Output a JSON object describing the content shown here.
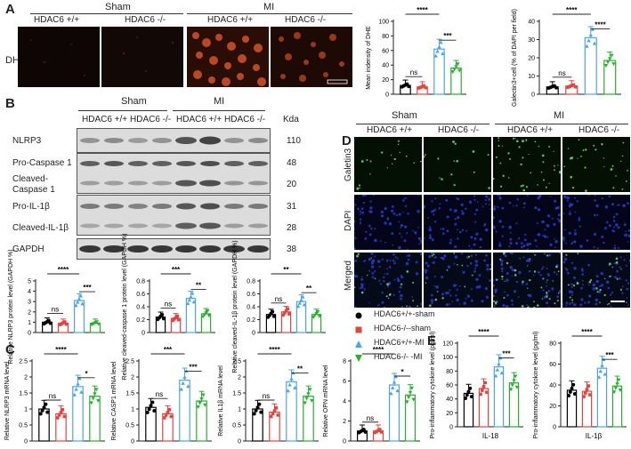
{
  "panels": {
    "A": {
      "letter": "A",
      "groups": [
        "Sham",
        "MI"
      ],
      "genotypes": [
        "HDAC6 +/+",
        "HDAC6 -/-",
        "HDAC6 +/+",
        "HDAC6 -/-"
      ],
      "row_label": "DHE"
    },
    "B": {
      "letter": "B",
      "groups": [
        "Sham",
        "MI"
      ],
      "genotypes": [
        "HDAC6 +/+",
        "HDAC6 -/-",
        "HDAC6 +/+",
        "HDAC6 -/-"
      ],
      "kda_label": "Kda",
      "rows": [
        {
          "label": "NLRP3",
          "kda": "110"
        },
        {
          "label": "Pro-Caspase 1",
          "kda": "48"
        },
        {
          "label": "Cleaved-\nCaspase 1",
          "kda": "20"
        },
        {
          "label": "Pro-IL-1β",
          "kda": "31"
        },
        {
          "label": "Cleaved-IL-1β",
          "kda": "28"
        },
        {
          "label": "GAPDH",
          "kda": "38"
        }
      ]
    },
    "C": {
      "letter": "C"
    },
    "D": {
      "letter": "D",
      "groups": [
        "Sham",
        "MI"
      ],
      "genotypes": [
        "HDAC6 +/+",
        "HDAC6 -/-",
        "HDAC6 +/+",
        "HDAC6 -/-"
      ],
      "rows": [
        "Galetin3",
        "DAPI",
        "Merged"
      ]
    },
    "E": {
      "letter": "E"
    }
  },
  "legend": {
    "items": [
      {
        "label": "HDAC6+/+-sham",
        "color": "#000000",
        "marker": "circle"
      },
      {
        "label": "HDAC6-/--sham",
        "color": "#e8423d",
        "marker": "square"
      },
      {
        "label": "HDAC6+/+-MI",
        "color": "#4aa6e8",
        "marker": "triangle-up"
      },
      {
        "label": "HDAC6-/- -MI",
        "color": "#27b02e",
        "marker": "triangle-down"
      }
    ]
  },
  "colors": {
    "sham_wt": "#000000",
    "sham_ko": "#e8423d",
    "mi_wt": "#4aa6e8",
    "mi_ko": "#27b02e"
  },
  "chart_data": [
    {
      "id": "A-dhe",
      "type": "bar",
      "ylabel": "Mean indensity of DHE",
      "ylim": [
        0,
        100
      ],
      "yticks": [
        0,
        20,
        40,
        60,
        80,
        100
      ],
      "values": [
        12,
        10,
        62,
        36
      ],
      "sig": [
        {
          "a": 0,
          "b": 1,
          "t": "ns"
        },
        {
          "a": 0,
          "b": 2,
          "t": "****"
        },
        {
          "a": 2,
          "b": 3,
          "t": "***"
        }
      ]
    },
    {
      "id": "A-galectin",
      "type": "bar",
      "ylabel": "Galectin3+cell (% of DAPI per field)",
      "ylim": [
        0,
        40
      ],
      "yticks": [
        0,
        10,
        20,
        30,
        40
      ],
      "values": [
        4,
        4.5,
        31,
        18.5
      ],
      "sig": [
        {
          "a": 0,
          "b": 1,
          "t": "ns"
        },
        {
          "a": 0,
          "b": 2,
          "t": "****"
        },
        {
          "a": 2,
          "b": 3,
          "t": "****"
        }
      ]
    },
    {
      "id": "B-nlrp3",
      "type": "bar",
      "ylabel": "Relative NLRP3 protein level (GAPDH %)",
      "ylim": [
        0,
        5
      ],
      "yticks": [
        0,
        1,
        2,
        3,
        4,
        5
      ],
      "values": [
        1.0,
        0.9,
        3.1,
        0.9
      ],
      "sig": [
        {
          "a": 0,
          "b": 1,
          "t": "ns"
        },
        {
          "a": 0,
          "b": 2,
          "t": "****"
        },
        {
          "a": 2,
          "b": 3,
          "t": "***"
        }
      ]
    },
    {
      "id": "B-casp1",
      "type": "bar",
      "ylabel": "Relative cleaved-caspase 1 protein level (GAPDH %)",
      "ylim": [
        0,
        0.8
      ],
      "yticks": [
        0,
        0.2,
        0.4,
        0.6,
        0.8
      ],
      "values": [
        0.24,
        0.22,
        0.53,
        0.29
      ],
      "sig": [
        {
          "a": 0,
          "b": 1,
          "t": "ns"
        },
        {
          "a": 0,
          "b": 2,
          "t": "***"
        },
        {
          "a": 2,
          "b": 3,
          "t": "**"
        }
      ]
    },
    {
      "id": "B-il1b",
      "type": "bar",
      "ylabel": "Relative cleaved-IL-1β protein level (GAPDH %)",
      "ylim": [
        0,
        0.8
      ],
      "yticks": [
        0,
        0.2,
        0.4,
        0.6,
        0.8
      ],
      "values": [
        0.28,
        0.32,
        0.48,
        0.28
      ],
      "sig": [
        {
          "a": 0,
          "b": 1,
          "t": "ns"
        },
        {
          "a": 0,
          "b": 2,
          "t": "**"
        },
        {
          "a": 2,
          "b": 3,
          "t": "**"
        }
      ]
    },
    {
      "id": "C-nlrp3",
      "type": "bar",
      "ylabel": "Relative NLRP3 mRNA level",
      "ylim": [
        0,
        2.5
      ],
      "yticks": [
        0,
        0.5,
        1.0,
        1.5,
        2.0,
        2.5
      ],
      "values": [
        1.0,
        0.85,
        1.7,
        1.4
      ],
      "sig": [
        {
          "a": 0,
          "b": 1,
          "t": "ns"
        },
        {
          "a": 0,
          "b": 2,
          "t": "****"
        },
        {
          "a": 2,
          "b": 3,
          "t": "*"
        }
      ]
    },
    {
      "id": "C-casp1",
      "type": "bar",
      "ylabel": "Relative CASP1 mRNA level",
      "ylim": [
        0,
        2.5
      ],
      "yticks": [
        0,
        0.5,
        1.0,
        1.5,
        2.0,
        2.5
      ],
      "values": [
        1.05,
        0.85,
        1.9,
        1.25
      ],
      "sig": [
        {
          "a": 0,
          "b": 1,
          "t": "ns"
        },
        {
          "a": 0,
          "b": 2,
          "t": "***"
        },
        {
          "a": 2,
          "b": 3,
          "t": "***"
        }
      ]
    },
    {
      "id": "C-il1b",
      "type": "bar",
      "ylabel": "Relative IL1β mRNA level",
      "ylim": [
        0,
        2.5
      ],
      "yticks": [
        0,
        0.5,
        1.0,
        1.5,
        2.0,
        2.5
      ],
      "values": [
        1.0,
        0.9,
        1.85,
        1.4
      ],
      "sig": [
        {
          "a": 0,
          "b": 1,
          "t": "ns"
        },
        {
          "a": 0,
          "b": 2,
          "t": "****"
        },
        {
          "a": 2,
          "b": 3,
          "t": "**"
        }
      ]
    },
    {
      "id": "C-opn",
      "type": "bar",
      "ylabel": "Relative OPN mRNA level",
      "ylim": [
        0,
        8
      ],
      "yticks": [
        0,
        2,
        4,
        6,
        8
      ],
      "values": [
        1.0,
        1.0,
        5.6,
        4.6
      ],
      "sig": [
        {
          "a": 0,
          "b": 1,
          "t": "ns"
        },
        {
          "a": 0,
          "b": 2,
          "t": "****"
        },
        {
          "a": 2,
          "b": 3,
          "t": "*"
        }
      ]
    },
    {
      "id": "E-il18",
      "type": "bar",
      "ylabel": "Pro-inflammatory cytokine level (pg/ml)",
      "xlabel": "IL-18",
      "ylim": [
        0,
        120
      ],
      "yticks": [
        0,
        20,
        40,
        60,
        80,
        100,
        120
      ],
      "values": [
        48,
        55,
        86,
        63
      ],
      "sig": [
        {
          "a": 0,
          "b": 2,
          "t": "****"
        },
        {
          "a": 2,
          "b": 3,
          "t": "***"
        }
      ]
    },
    {
      "id": "E-il1b",
      "type": "bar",
      "ylabel": "Pro-inflammatory cytokine level (pg/ml)",
      "xlabel": "IL-1β",
      "ylim": [
        0,
        80
      ],
      "yticks": [
        0,
        20,
        40,
        60,
        80
      ],
      "values": [
        35,
        34,
        56,
        39
      ],
      "sig": [
        {
          "a": 0,
          "b": 2,
          "t": "****"
        },
        {
          "a": 2,
          "b": 3,
          "t": "***"
        }
      ]
    }
  ]
}
